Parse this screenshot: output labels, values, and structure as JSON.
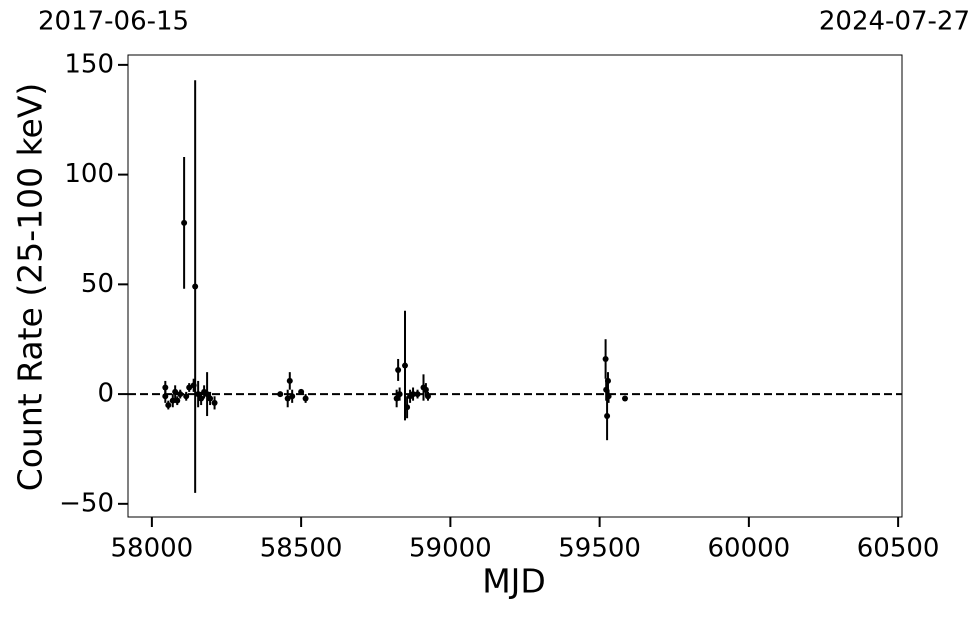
{
  "chart_data": {
    "type": "scatter",
    "corner_labels": [
      "2017-06-15",
      "2024-07-27"
    ],
    "xlabel": "MJD",
    "ylabel": "Count Rate (25-100 keV)",
    "xlim": [
      57920,
      60513
    ],
    "ylim": [
      -56,
      154.5
    ],
    "xticks": [
      58000,
      58500,
      59000,
      59500,
      60000,
      60500
    ],
    "yticks": [
      {
        "value": -50,
        "label": "−50"
      },
      0,
      50,
      100,
      150
    ],
    "hline": 0,
    "color": "#000000",
    "series": [
      {
        "x": [
          58045,
          58045,
          58055,
          58070,
          58078,
          58085,
          58095,
          58108,
          58115,
          58125,
          58140,
          58145,
          58155,
          58165,
          58175,
          58185,
          58195,
          58210,
          58430,
          58455,
          58462,
          58470,
          58500,
          58515,
          58820,
          58825,
          58830,
          58848,
          58855,
          58865,
          58875,
          58890,
          58910,
          58918,
          58925,
          59520,
          59522,
          59525,
          59528,
          59530,
          59585
        ],
        "values": [
          3,
          -1,
          -5,
          -3,
          1,
          -3,
          0,
          78,
          -1,
          3,
          4,
          49,
          0,
          -2,
          1,
          0,
          -2,
          -4,
          0,
          -2,
          6,
          -1,
          1,
          -2,
          -2,
          11,
          0,
          13,
          -6,
          -1,
          0,
          0,
          3,
          2,
          -1,
          16,
          2,
          -10,
          6,
          -1,
          -2
        ],
        "errors": [
          3,
          3,
          2,
          3,
          3,
          2,
          2,
          30,
          2,
          2,
          3,
          94,
          6,
          3,
          3,
          10,
          3,
          3,
          1,
          4,
          4,
          3,
          1,
          2,
          4,
          5,
          3,
          25,
          5,
          3,
          3,
          2,
          6,
          3,
          2,
          9,
          5,
          11,
          4,
          3,
          1
        ]
      }
    ]
  }
}
